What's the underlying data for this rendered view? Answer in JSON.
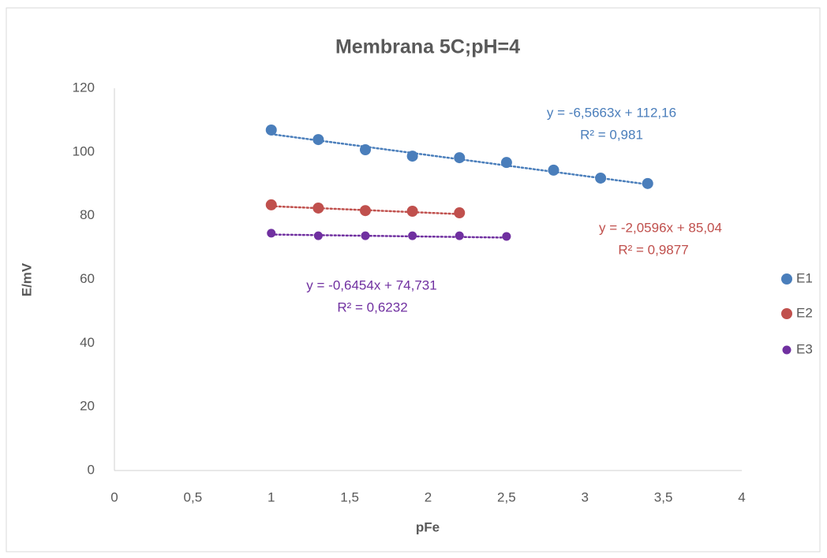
{
  "chart_data": {
    "type": "scatter",
    "title": "Membrana 5C;pH=4",
    "x_label": "pFe",
    "y_label": "E/mV",
    "xlim": [
      0,
      4
    ],
    "xticks": [
      0,
      {
        "value": 0.5,
        "label": "0,5"
      },
      1,
      {
        "value": 1.5,
        "label": "1,5"
      },
      2,
      {
        "value": 2.5,
        "label": "2,5"
      },
      3,
      {
        "value": 3.5,
        "label": "3,5"
      },
      4
    ],
    "ylim": [
      0,
      120
    ],
    "yticks": [
      0,
      20,
      40,
      60,
      80,
      100,
      120
    ],
    "grid": false,
    "legend": "right",
    "series": [
      {
        "name": "E1",
        "color": "#4a7ebb",
        "x": [
          1,
          1.3,
          1.6,
          1.9,
          2.2,
          2.5,
          2.8,
          3.1,
          3.4
        ],
        "values": [
          106.9,
          103.9,
          100.7,
          98.7,
          98.2,
          96.7,
          94.3,
          91.8,
          90.1
        ],
        "trendline": {
          "slope": -6.5663,
          "intercept": 112.16,
          "equation": "y = -6,5663x + 112,16",
          "r_squared": "R² = 0,981"
        }
      },
      {
        "name": "E2",
        "color": "#c0504d",
        "x": [
          1,
          1.3,
          1.6,
          1.9,
          2.2
        ],
        "values": [
          83.4,
          82.4,
          81.6,
          81.4,
          80.9
        ],
        "trendline": {
          "slope": -2.0596,
          "intercept": 85.04,
          "equation": "y = -2,0596x + 85,04",
          "r_squared": "R² = 0,9877"
        }
      },
      {
        "name": "E3",
        "color": "#7030a0",
        "x": [
          1,
          1.3,
          1.6,
          1.9,
          2.2,
          2.5
        ],
        "values": [
          74.5,
          73.7,
          73.7,
          73.7,
          73.7,
          73.5
        ],
        "trendline": {
          "slope": -0.6454,
          "intercept": 74.731,
          "equation": "y = -0,6454x + 74,731",
          "r_squared": "R² = 0,6232"
        }
      }
    ]
  }
}
